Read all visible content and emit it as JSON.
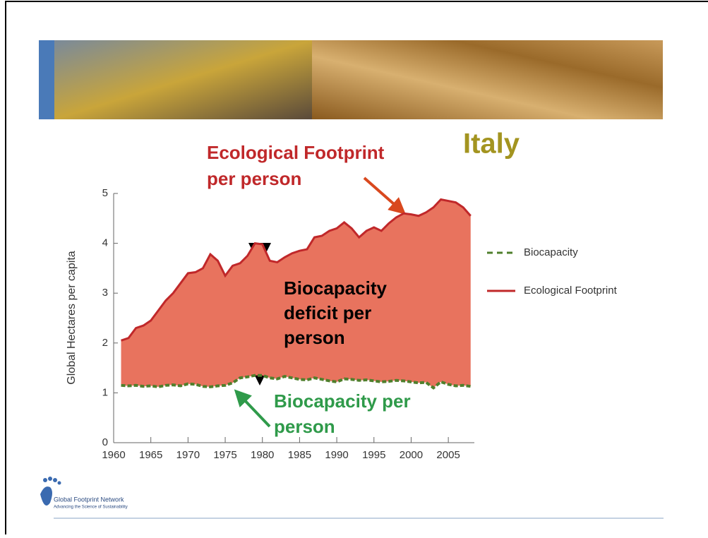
{
  "chart_data": {
    "type": "area",
    "title": "Italy",
    "ylabel": "Global Hectares per capita",
    "annotations": {
      "footprint": [
        "Ecological Footprint",
        "per person"
      ],
      "deficit": [
        "Biocapacity",
        "deficit per",
        "person"
      ],
      "biocapacity": [
        "Biocapacity per",
        "person"
      ]
    },
    "logo": {
      "name": "Global Footprint Network",
      "tagline": "Advancing the Science of Sustainability"
    },
    "x": [
      1961,
      1962,
      1963,
      1964,
      1965,
      1966,
      1967,
      1968,
      1969,
      1970,
      1971,
      1972,
      1973,
      1974,
      1975,
      1976,
      1977,
      1978,
      1979,
      1980,
      1981,
      1982,
      1983,
      1984,
      1985,
      1986,
      1987,
      1988,
      1989,
      1990,
      1991,
      1992,
      1993,
      1994,
      1995,
      1996,
      1997,
      1998,
      1999,
      2000,
      2001,
      2002,
      2003,
      2004,
      2005,
      2006,
      2007,
      2008
    ],
    "series": [
      {
        "name": "Biocapacity",
        "color": "#4f7f2c",
        "style": "dashed",
        "values": [
          1.15,
          1.14,
          1.15,
          1.13,
          1.14,
          1.12,
          1.15,
          1.16,
          1.14,
          1.18,
          1.17,
          1.13,
          1.12,
          1.14,
          1.15,
          1.2,
          1.3,
          1.32,
          1.35,
          1.35,
          1.3,
          1.28,
          1.33,
          1.3,
          1.27,
          1.26,
          1.3,
          1.27,
          1.24,
          1.22,
          1.28,
          1.27,
          1.25,
          1.26,
          1.24,
          1.22,
          1.23,
          1.25,
          1.24,
          1.22,
          1.2,
          1.21,
          1.1,
          1.22,
          1.17,
          1.14,
          1.15,
          1.13
        ]
      },
      {
        "name": "Ecological Footprint",
        "color": "#c0282a",
        "style": "solid",
        "values": [
          2.05,
          2.1,
          2.3,
          2.35,
          2.45,
          2.65,
          2.85,
          3.0,
          3.2,
          3.4,
          3.42,
          3.5,
          3.78,
          3.65,
          3.35,
          3.55,
          3.6,
          3.75,
          4.0,
          3.98,
          3.65,
          3.62,
          3.72,
          3.8,
          3.85,
          3.88,
          4.12,
          4.15,
          4.25,
          4.3,
          4.42,
          4.3,
          4.12,
          4.25,
          4.32,
          4.25,
          4.4,
          4.52,
          4.6,
          4.58,
          4.55,
          4.62,
          4.72,
          4.88,
          4.85,
          4.82,
          4.72,
          4.55
        ]
      }
    ],
    "area_color": "#e8735e",
    "xlim": [
      1960,
      2008.5
    ],
    "xticks": [
      1960,
      1965,
      1970,
      1975,
      1980,
      1985,
      1990,
      1995,
      2000,
      2005
    ],
    "ylim": [
      0,
      5
    ],
    "yticks": [
      0,
      1,
      2,
      3,
      4,
      5
    ]
  }
}
